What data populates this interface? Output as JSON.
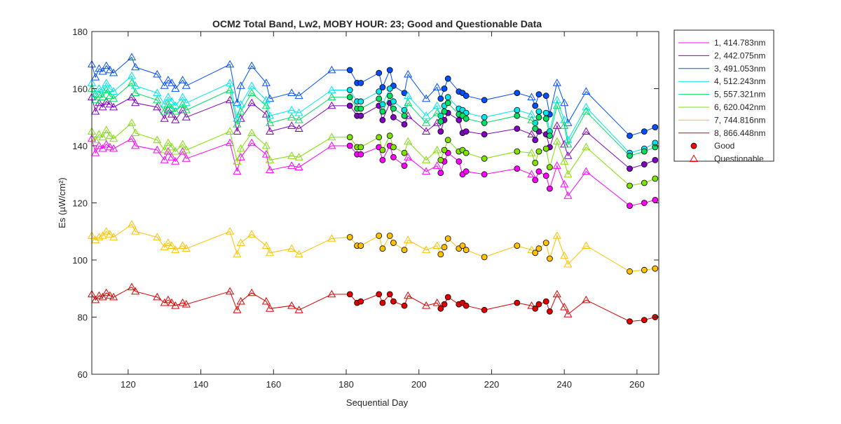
{
  "chart_data": {
    "type": "line",
    "title": "OCM2 Total Band,  Lw2, MOBY HOUR: 23;  Good and Questionable Data",
    "xlabel": "Sequential Day",
    "ylabel": "Es (µW/cm²)",
    "xlim": [
      110,
      266
    ],
    "ylim": [
      60,
      180
    ],
    "xticks": [
      120,
      140,
      160,
      180,
      200,
      220,
      240,
      260
    ],
    "yticks": [
      60,
      80,
      100,
      120,
      140,
      160,
      180
    ],
    "grid": false,
    "legend_position": "outside-right-top",
    "x": [
      110,
      111,
      112,
      113,
      114,
      115,
      116,
      121,
      122,
      128,
      130,
      131,
      132,
      133,
      135,
      136,
      148,
      150,
      151,
      154,
      158,
      159,
      165,
      167,
      176,
      181,
      183,
      184,
      189,
      190,
      192,
      193,
      196,
      197,
      202,
      205,
      206,
      207,
      208,
      211,
      212,
      213,
      218,
      227,
      231,
      232,
      233,
      235,
      236,
      238,
      240,
      241,
      246,
      258,
      262,
      265
    ],
    "status": [
      "Q",
      "Q",
      "Q",
      "Q",
      "Q",
      "Q",
      "Q",
      "Q",
      "Q",
      "Q",
      "Q",
      "Q",
      "Q",
      "Q",
      "Q",
      "Q",
      "Q",
      "Q",
      "Q",
      "Q",
      "Q",
      "Q",
      "Q",
      "Q",
      "Q",
      "G",
      "G",
      "G",
      "G",
      "G",
      "G",
      "G",
      "G",
      "Q",
      "Q",
      "Q",
      "G",
      "G",
      "G",
      "G",
      "G",
      "G",
      "G",
      "G",
      "Q",
      "G",
      "G",
      "G",
      "G",
      "Q",
      "Q",
      "Q",
      "Q",
      "G",
      "G",
      "G"
    ],
    "series": [
      {
        "name": "1, 414.783nm",
        "color": "#ff00ff",
        "values": [
          142.5,
          137.5,
          140.0,
          139.0,
          140.5,
          139.5,
          139.0,
          142.5,
          140.0,
          138.5,
          135.0,
          138.0,
          136.0,
          134.5,
          138.0,
          135.5,
          141.0,
          131.0,
          136.0,
          141.0,
          137.0,
          131.5,
          133.0,
          132.5,
          140.0,
          140.0,
          137.0,
          137.0,
          139.5,
          135.0,
          140.0,
          136.0,
          133.0,
          136.0,
          131.0,
          133.0,
          130.5,
          134.5,
          137.5,
          134.5,
          130.0,
          131.0,
          130.0,
          132.0,
          130.0,
          128.0,
          131.0,
          129.5,
          125.0,
          133.0,
          126.5,
          122.5,
          131.0,
          119.0,
          120.0,
          121.0
        ]
      },
      {
        "name": "2, 442.075nm",
        "color": "#8000c0",
        "values": [
          157.0,
          152.0,
          155.0,
          153.5,
          155.5,
          154.5,
          153.5,
          157.0,
          155.0,
          153.5,
          149.5,
          152.5,
          151.0,
          149.0,
          152.5,
          150.0,
          156.0,
          145.0,
          149.5,
          155.0,
          151.0,
          145.0,
          147.0,
          146.0,
          154.0,
          154.0,
          150.5,
          150.5,
          154.0,
          149.0,
          155.0,
          150.0,
          147.5,
          150.5,
          145.0,
          148.0,
          145.0,
          149.0,
          151.5,
          149.0,
          144.5,
          145.0,
          144.0,
          146.0,
          144.0,
          142.0,
          145.0,
          144.0,
          139.5,
          147.0,
          140.5,
          136.5,
          145.0,
          132.0,
          133.5,
          135.0
        ]
      },
      {
        "name": "3, 491.053nm",
        "color": "#0050ff",
        "values": [
          168.5,
          164.0,
          167.0,
          166.0,
          168.0,
          166.5,
          165.5,
          171.0,
          167.5,
          165.0,
          161.0,
          163.0,
          162.0,
          160.0,
          163.0,
          161.0,
          168.5,
          155.0,
          161.0,
          168.0,
          162.0,
          156.5,
          158.5,
          157.5,
          166.5,
          166.5,
          162.0,
          162.0,
          165.5,
          160.5,
          166.5,
          161.0,
          158.5,
          165.0,
          156.5,
          160.5,
          156.5,
          160.0,
          163.5,
          159.0,
          158.5,
          157.5,
          156.0,
          158.5,
          157.0,
          154.0,
          158.0,
          157.5,
          151.0,
          162.0,
          155.0,
          148.0,
          159.0,
          143.5,
          145.0,
          146.5
        ]
      },
      {
        "name": "4, 512.243nm",
        "color": "#00e5ee",
        "values": [
          162.0,
          158.0,
          160.0,
          159.5,
          162.0,
          160.0,
          159.0,
          164.5,
          161.0,
          158.5,
          154.5,
          157.0,
          155.5,
          154.0,
          157.0,
          155.0,
          162.0,
          149.5,
          154.5,
          161.0,
          156.0,
          150.5,
          152.5,
          151.5,
          159.5,
          159.5,
          155.5,
          155.5,
          159.0,
          154.5,
          160.0,
          155.5,
          152.5,
          157.5,
          150.5,
          154.0,
          150.5,
          154.0,
          157.0,
          153.0,
          152.5,
          151.5,
          150.0,
          152.5,
          151.0,
          148.0,
          152.0,
          151.5,
          145.0,
          156.0,
          149.0,
          142.0,
          153.5,
          137.5,
          139.0,
          141.0
        ]
      },
      {
        "name": "5, 557.321nm",
        "color": "#00e060",
        "values": [
          160.0,
          156.0,
          158.0,
          157.0,
          159.5,
          157.5,
          156.5,
          162.0,
          158.5,
          156.0,
          152.0,
          154.5,
          153.0,
          152.0,
          154.5,
          152.5,
          159.5,
          147.5,
          152.0,
          158.5,
          154.0,
          148.0,
          150.0,
          149.0,
          157.0,
          157.0,
          153.0,
          153.0,
          156.5,
          152.0,
          157.5,
          153.0,
          150.5,
          155.0,
          148.0,
          151.5,
          148.5,
          152.0,
          155.0,
          151.0,
          150.5,
          149.5,
          148.0,
          150.5,
          149.0,
          146.0,
          150.0,
          149.5,
          143.5,
          154.0,
          147.0,
          140.5,
          152.0,
          136.5,
          138.0,
          139.5
        ]
      },
      {
        "name": "6, 620.042nm",
        "color": "#80e000",
        "values": [
          145.0,
          142.0,
          144.0,
          143.0,
          145.5,
          143.5,
          142.5,
          148.0,
          144.5,
          142.0,
          138.5,
          141.0,
          139.5,
          138.0,
          140.5,
          138.5,
          145.0,
          134.5,
          139.0,
          144.5,
          140.0,
          135.0,
          136.5,
          136.0,
          143.0,
          143.0,
          139.5,
          139.5,
          143.0,
          138.5,
          143.5,
          139.5,
          137.5,
          141.5,
          135.0,
          138.5,
          135.0,
          138.5,
          142.0,
          138.0,
          138.5,
          137.5,
          135.5,
          138.0,
          137.5,
          134.0,
          138.0,
          139.0,
          132.5,
          141.5,
          134.5,
          130.0,
          139.5,
          126.0,
          127.0,
          128.5
        ]
      },
      {
        "name": "7, 744.816nm",
        "color": "#ffc000",
        "values": [
          108.5,
          107.0,
          108.0,
          108.5,
          110.0,
          109.0,
          108.0,
          112.5,
          110.0,
          108.0,
          104.5,
          106.0,
          105.0,
          103.5,
          105.0,
          104.0,
          110.0,
          102.0,
          106.0,
          109.0,
          105.0,
          102.5,
          104.0,
          102.0,
          107.5,
          108.0,
          105.0,
          105.0,
          108.5,
          104.0,
          108.5,
          106.0,
          103.5,
          107.0,
          103.5,
          105.0,
          102.0,
          104.5,
          107.5,
          104.0,
          105.0,
          103.5,
          101.0,
          105.0,
          103.5,
          102.5,
          104.0,
          106.0,
          100.5,
          108.5,
          101.5,
          98.5,
          105.0,
          96.0,
          96.5,
          97.0
        ]
      },
      {
        "name": "8, 866.448nm",
        "color": "#e00000",
        "values": [
          88.0,
          86.0,
          87.5,
          87.0,
          88.5,
          87.5,
          87.0,
          90.5,
          89.0,
          87.0,
          85.0,
          86.0,
          85.0,
          84.0,
          85.0,
          84.5,
          89.0,
          82.5,
          85.5,
          88.5,
          85.5,
          83.0,
          84.0,
          82.5,
          88.0,
          88.0,
          85.0,
          85.5,
          88.0,
          85.0,
          88.0,
          85.5,
          84.0,
          87.5,
          84.0,
          85.0,
          83.0,
          84.5,
          87.0,
          84.5,
          85.0,
          84.0,
          82.5,
          85.0,
          84.0,
          83.0,
          84.5,
          85.5,
          82.0,
          88.0,
          83.5,
          81.0,
          86.0,
          78.5,
          79.0,
          80.0
        ]
      }
    ],
    "legend_markers": [
      {
        "name": "Good",
        "marker": "filled-circle",
        "color": "#ff0000"
      },
      {
        "name": "Questionable",
        "marker": "open-triangle",
        "color": "#ff0000"
      }
    ]
  }
}
